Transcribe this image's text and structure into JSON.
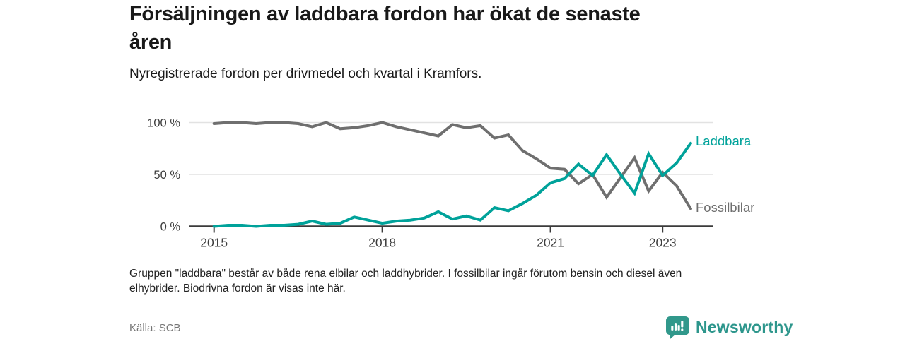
{
  "header": {
    "title_lines": [
      "Försäljningen av laddbara fordon har ökat de senaste",
      "åren"
    ],
    "subtitle": "Nyregistrerade fordon per drivmedel och kvartal i Kramfors."
  },
  "chart_data": {
    "type": "line",
    "title": "Försäljningen av laddbara fordon har ökat de senaste åren",
    "subtitle": "Nyregistrerade fordon per drivmedel och kvartal i Kramfors.",
    "unit": "percent",
    "grid": "horizontal",
    "legend_position": "line-end-labels",
    "ylim": [
      0,
      100
    ],
    "x": [
      "2015 Q1",
      "2015 Q2",
      "2015 Q3",
      "2015 Q4",
      "2016 Q1",
      "2016 Q2",
      "2016 Q3",
      "2016 Q4",
      "2017 Q1",
      "2017 Q2",
      "2017 Q3",
      "2017 Q4",
      "2018 Q1",
      "2018 Q2",
      "2018 Q3",
      "2018 Q4",
      "2019 Q1",
      "2019 Q2",
      "2019 Q3",
      "2019 Q4",
      "2020 Q1",
      "2020 Q2",
      "2020 Q3",
      "2020 Q4",
      "2021 Q1",
      "2021 Q2",
      "2021 Q3",
      "2021 Q4",
      "2022 Q1",
      "2022 Q2",
      "2022 Q3",
      "2022 Q4",
      "2023 Q1",
      "2023 Q2",
      "2023 Q3"
    ],
    "series": [
      {
        "name": "Laddbara",
        "color": "#00A29A",
        "values": [
          0,
          1,
          1,
          0,
          1,
          1,
          2,
          5,
          2,
          3,
          9,
          6,
          3,
          5,
          6,
          8,
          14,
          7,
          10,
          6,
          18,
          15,
          22,
          30,
          42,
          46,
          60,
          49,
          69,
          50,
          32,
          70,
          49,
          61,
          80
        ]
      },
      {
        "name": "Fossilbilar",
        "color": "#6F6F6F",
        "values": [
          99,
          100,
          100,
          99,
          100,
          100,
          99,
          96,
          100,
          94,
          95,
          97,
          100,
          96,
          93,
          90,
          87,
          98,
          95,
          97,
          85,
          88,
          73,
          65,
          56,
          55,
          41,
          50,
          28,
          47,
          66,
          34,
          52,
          39,
          17
        ]
      }
    ],
    "yticks": [
      {
        "value": 0,
        "label": "0 %"
      },
      {
        "value": 50,
        "label": "50 %"
      },
      {
        "value": 100,
        "label": "100 %"
      }
    ],
    "xticks": [
      {
        "label": "2015",
        "index": 0
      },
      {
        "label": "2018",
        "index": 12
      },
      {
        "label": "2021",
        "index": 24
      },
      {
        "label": "2023",
        "index": 32
      }
    ]
  },
  "footnote": {
    "lines": [
      "Gruppen \"laddbara\" består av både rena elbilar och laddhybrider. I fossilbilar ingår förutom bensin och diesel även",
      "elhybrider. Biodrivna fordon är visas inte här."
    ]
  },
  "source": {
    "text": "Källa: SCB"
  },
  "branding": {
    "name": "Newsworthy",
    "logo_icon": "bar-chart-speech-bubble-icon",
    "color": "#2D968C"
  }
}
